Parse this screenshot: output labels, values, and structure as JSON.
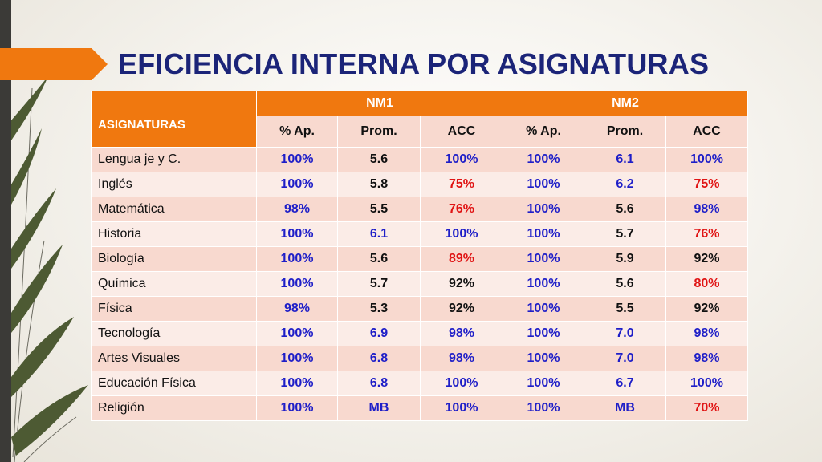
{
  "title": "EFICIENCIA INTERNA POR ASIGNATURAS",
  "colors": {
    "accent": "#f0780f",
    "title": "#1b2478",
    "blue": "#1e1ec8",
    "red": "#e01414",
    "black": "#111111"
  },
  "table": {
    "subject_header": "ASIGNATURAS",
    "groups": [
      {
        "label": "NM1",
        "columns": [
          "% Ap.",
          "Prom.",
          "ACC"
        ]
      },
      {
        "label": "NM2",
        "columns": [
          "% Ap.",
          "Prom.",
          "ACC"
        ]
      }
    ],
    "rows": [
      {
        "subject": "Lengua je y C.",
        "cells": [
          {
            "v": "100%",
            "c": "blue"
          },
          {
            "v": "5.6",
            "c": "black"
          },
          {
            "v": "100%",
            "c": "blue"
          },
          {
            "v": "100%",
            "c": "blue"
          },
          {
            "v": "6.1",
            "c": "blue"
          },
          {
            "v": "100%",
            "c": "blue"
          }
        ]
      },
      {
        "subject": "Inglés",
        "cells": [
          {
            "v": "100%",
            "c": "blue"
          },
          {
            "v": "5.8",
            "c": "black"
          },
          {
            "v": "75%",
            "c": "red"
          },
          {
            "v": "100%",
            "c": "blue"
          },
          {
            "v": "6.2",
            "c": "blue"
          },
          {
            "v": "75%",
            "c": "red"
          }
        ]
      },
      {
        "subject": "Matemática",
        "cells": [
          {
            "v": "98%",
            "c": "blue"
          },
          {
            "v": "5.5",
            "c": "black"
          },
          {
            "v": "76%",
            "c": "red"
          },
          {
            "v": "100%",
            "c": "blue"
          },
          {
            "v": "5.6",
            "c": "black"
          },
          {
            "v": "98%",
            "c": "blue"
          }
        ]
      },
      {
        "subject": "Historia",
        "cells": [
          {
            "v": "100%",
            "c": "blue"
          },
          {
            "v": "6.1",
            "c": "blue"
          },
          {
            "v": "100%",
            "c": "blue"
          },
          {
            "v": "100%",
            "c": "blue"
          },
          {
            "v": "5.7",
            "c": "black"
          },
          {
            "v": "76%",
            "c": "red"
          }
        ]
      },
      {
        "subject": "Biología",
        "cells": [
          {
            "v": "100%",
            "c": "blue"
          },
          {
            "v": "5.6",
            "c": "black"
          },
          {
            "v": "89%",
            "c": "red"
          },
          {
            "v": "100%",
            "c": "blue"
          },
          {
            "v": "5.9",
            "c": "black"
          },
          {
            "v": "92%",
            "c": "black"
          }
        ]
      },
      {
        "subject": "Química",
        "cells": [
          {
            "v": "100%",
            "c": "blue"
          },
          {
            "v": "5.7",
            "c": "black"
          },
          {
            "v": "92%",
            "c": "black"
          },
          {
            "v": "100%",
            "c": "blue"
          },
          {
            "v": "5.6",
            "c": "black"
          },
          {
            "v": "80%",
            "c": "red"
          }
        ]
      },
      {
        "subject": "Física",
        "cells": [
          {
            "v": "98%",
            "c": "blue"
          },
          {
            "v": "5.3",
            "c": "black"
          },
          {
            "v": "92%",
            "c": "black"
          },
          {
            "v": "100%",
            "c": "blue"
          },
          {
            "v": "5.5",
            "c": "black"
          },
          {
            "v": "92%",
            "c": "black"
          }
        ]
      },
      {
        "subject": "Tecnología",
        "cells": [
          {
            "v": "100%",
            "c": "blue"
          },
          {
            "v": "6.9",
            "c": "blue"
          },
          {
            "v": "98%",
            "c": "blue"
          },
          {
            "v": "100%",
            "c": "blue"
          },
          {
            "v": "7.0",
            "c": "blue"
          },
          {
            "v": "98%",
            "c": "blue"
          }
        ]
      },
      {
        "subject": "Artes Visuales",
        "cells": [
          {
            "v": "100%",
            "c": "blue"
          },
          {
            "v": "6.8",
            "c": "blue"
          },
          {
            "v": "98%",
            "c": "blue"
          },
          {
            "v": "100%",
            "c": "blue"
          },
          {
            "v": "7.0",
            "c": "blue"
          },
          {
            "v": "98%",
            "c": "blue"
          }
        ]
      },
      {
        "subject": "Educación Física",
        "cells": [
          {
            "v": "100%",
            "c": "blue"
          },
          {
            "v": "6.8",
            "c": "blue"
          },
          {
            "v": "100%",
            "c": "blue"
          },
          {
            "v": "100%",
            "c": "blue"
          },
          {
            "v": "6.7",
            "c": "blue"
          },
          {
            "v": "100%",
            "c": "blue"
          }
        ]
      },
      {
        "subject": "Religión",
        "cells": [
          {
            "v": "100%",
            "c": "blue"
          },
          {
            "v": "MB",
            "c": "blue"
          },
          {
            "v": "100%",
            "c": "blue"
          },
          {
            "v": "100%",
            "c": "blue"
          },
          {
            "v": "MB",
            "c": "blue"
          },
          {
            "v": "70%",
            "c": "red"
          }
        ]
      }
    ]
  }
}
